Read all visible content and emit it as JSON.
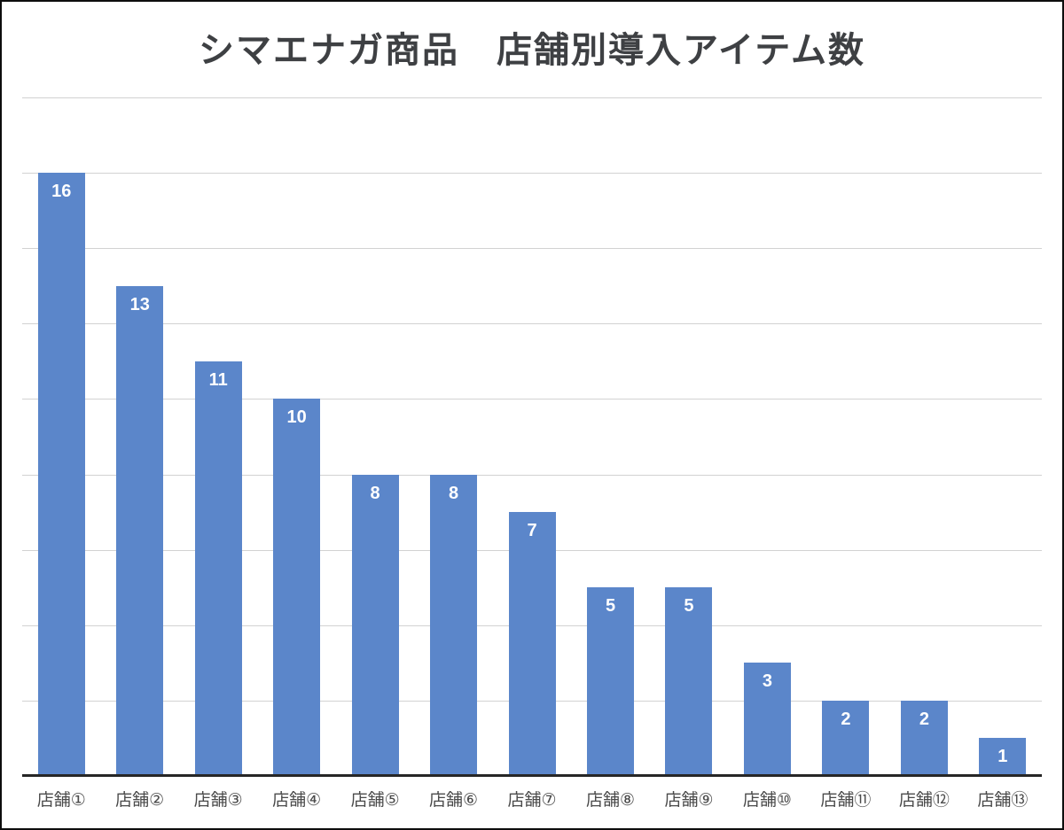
{
  "title": "シマエナガ商品　店舗別導入アイテム数",
  "chart_data": {
    "type": "bar",
    "title": "シマエナガ商品　店舗別導入アイテム数",
    "categories": [
      "店舗①",
      "店舗②",
      "店舗③",
      "店舗④",
      "店舗⑤",
      "店舗⑥",
      "店舗⑦",
      "店舗⑧",
      "店舗⑨",
      "店舗⑩",
      "店舗⑪",
      "店舗⑫",
      "店舗⑬"
    ],
    "values": [
      16,
      13,
      11,
      10,
      8,
      8,
      7,
      5,
      5,
      3,
      2,
      2,
      1
    ],
    "show_value_labels": true,
    "xlabel": "",
    "ylabel": "",
    "ylim": [
      0,
      18
    ],
    "grid": true,
    "gridline_step": 2,
    "y_tick_labels_visible": false,
    "legend": false
  },
  "colors": {
    "bar": "#5B86CA",
    "gridline": "#D2D2D2",
    "axis_line": "#262626",
    "title_text": "#3E4043",
    "tick_text": "#4A4A4A",
    "value_label_text": "#FFFFFF",
    "background": "#FFFFFF",
    "frame_border": "#0D0D0D"
  }
}
